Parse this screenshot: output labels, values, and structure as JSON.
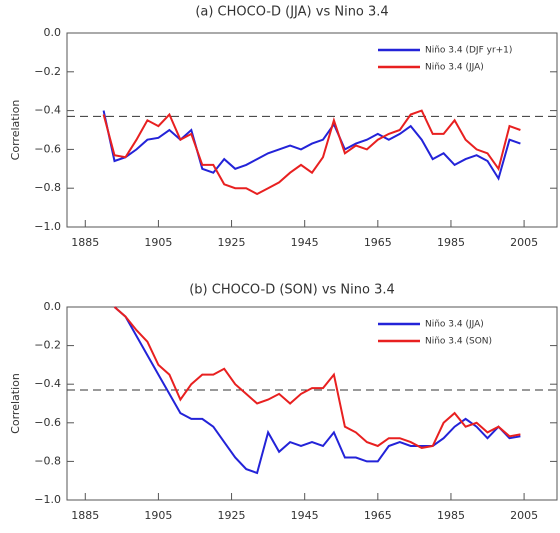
{
  "chart_data": [
    {
      "type": "line",
      "title": "(a) CHOCO-D (JJA) vs Nino 3.4",
      "y_label": "Correlation",
      "x": [
        1890,
        1893,
        1896,
        1899,
        1902,
        1905,
        1908,
        1911,
        1914,
        1917,
        1920,
        1923,
        1926,
        1929,
        1932,
        1935,
        1938,
        1941,
        1944,
        1947,
        1950,
        1953,
        1956,
        1959,
        1962,
        1965,
        1968,
        1971,
        1974,
        1977,
        1980,
        1983,
        1986,
        1989,
        1992,
        1995,
        1998,
        2001,
        2004
      ],
      "series": [
        {
          "name": "Niño 3.4 (DJF yr+1)",
          "color": "#2323d8",
          "values": [
            -0.4,
            -0.66,
            -0.64,
            -0.6,
            -0.55,
            -0.54,
            -0.5,
            -0.55,
            -0.5,
            -0.7,
            -0.72,
            -0.65,
            -0.7,
            -0.68,
            -0.65,
            -0.62,
            -0.6,
            -0.58,
            -0.6,
            -0.57,
            -0.55,
            -0.47,
            -0.6,
            -0.57,
            -0.55,
            -0.52,
            -0.55,
            -0.52,
            -0.48,
            -0.55,
            -0.65,
            -0.62,
            -0.68,
            -0.65,
            -0.63,
            -0.66,
            -0.75,
            -0.55,
            -0.57
          ]
        },
        {
          "name": "Niño 3.4 (JJA)",
          "color": "#e82020",
          "values": [
            -0.42,
            -0.63,
            -0.64,
            -0.55,
            -0.45,
            -0.48,
            -0.42,
            -0.55,
            -0.52,
            -0.68,
            -0.68,
            -0.78,
            -0.8,
            -0.8,
            -0.83,
            -0.8,
            -0.77,
            -0.72,
            -0.68,
            -0.72,
            -0.64,
            -0.45,
            -0.62,
            -0.58,
            -0.6,
            -0.55,
            -0.52,
            -0.5,
            -0.42,
            -0.4,
            -0.52,
            -0.52,
            -0.45,
            -0.55,
            -0.6,
            -0.62,
            -0.7,
            -0.48,
            -0.5
          ]
        }
      ],
      "hline": -0.43,
      "xlim": [
        1880,
        2014
      ],
      "xticks": [
        1885,
        1905,
        1925,
        1945,
        1965,
        1985,
        2005
      ],
      "ylim": [
        -1,
        0
      ],
      "yticks": [
        {
          "value": -1,
          "label": "−1.0"
        },
        {
          "value": -0.8,
          "label": "−0.8"
        },
        {
          "value": -0.6,
          "label": "−0.6"
        },
        {
          "value": -0.4,
          "label": "−0.4"
        },
        {
          "value": -0.2,
          "label": "−0.2"
        },
        {
          "value": 0,
          "label": "0.0"
        }
      ]
    },
    {
      "type": "line",
      "title": "(b) CHOCO-D (SON) vs Nino 3.4",
      "y_label": "Correlation",
      "x": [
        1893,
        1896,
        1899,
        1902,
        1905,
        1908,
        1911,
        1914,
        1917,
        1920,
        1923,
        1926,
        1929,
        1932,
        1935,
        1938,
        1941,
        1944,
        1947,
        1950,
        1953,
        1956,
        1959,
        1962,
        1965,
        1968,
        1971,
        1974,
        1977,
        1980,
        1983,
        1986,
        1989,
        1992,
        1995,
        1998,
        2001,
        2004
      ],
      "series": [
        {
          "name": "Niño 3.4 (JJA)",
          "color": "#2323d8",
          "values": [
            0,
            -0.05,
            -0.15,
            -0.25,
            -0.35,
            -0.45,
            -0.55,
            -0.58,
            -0.58,
            -0.62,
            -0.7,
            -0.78,
            -0.84,
            -0.86,
            -0.65,
            -0.75,
            -0.7,
            -0.72,
            -0.7,
            -0.72,
            -0.65,
            -0.78,
            -0.78,
            -0.8,
            -0.8,
            -0.72,
            -0.7,
            -0.72,
            -0.72,
            -0.72,
            -0.68,
            -0.62,
            -0.58,
            -0.62,
            -0.68,
            -0.62,
            -0.68,
            -0.67
          ]
        },
        {
          "name": "Niño 3.4 (SON)",
          "color": "#e82020",
          "values": [
            0,
            -0.05,
            -0.12,
            -0.18,
            -0.3,
            -0.35,
            -0.48,
            -0.4,
            -0.35,
            -0.35,
            -0.32,
            -0.4,
            -0.45,
            -0.5,
            -0.48,
            -0.45,
            -0.5,
            -0.45,
            -0.42,
            -0.42,
            -0.35,
            -0.62,
            -0.65,
            -0.7,
            -0.72,
            -0.68,
            -0.68,
            -0.7,
            -0.73,
            -0.72,
            -0.6,
            -0.55,
            -0.62,
            -0.6,
            -0.65,
            -0.62,
            -0.67,
            -0.66
          ]
        }
      ],
      "hline": -0.43,
      "xlim": [
        1880,
        2014
      ],
      "xticks": [
        1885,
        1905,
        1925,
        1945,
        1965,
        1985,
        2005
      ],
      "ylim": [
        -1,
        0
      ],
      "yticks": [
        {
          "value": -1,
          "label": "−1.0"
        },
        {
          "value": -0.8,
          "label": "−0.8"
        },
        {
          "value": -0.6,
          "label": "−0.6"
        },
        {
          "value": -0.4,
          "label": "−0.4"
        },
        {
          "value": -0.2,
          "label": "−0.2"
        },
        {
          "value": 0,
          "label": "0.0"
        }
      ]
    }
  ]
}
